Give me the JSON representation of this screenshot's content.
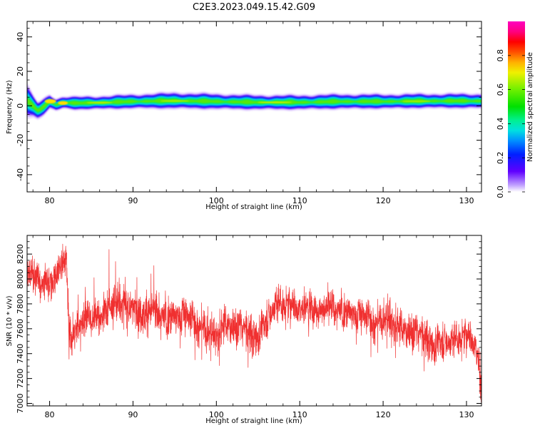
{
  "title": "C2E3.2023.049.15.42.G09",
  "chart_data": [
    {
      "type": "heatmap",
      "xlabel": "Height of straight line (km)",
      "ylabel": "Frequency (Hz)",
      "xlim": [
        77.3,
        131.8
      ],
      "ylim": [
        -50,
        49
      ],
      "xticks": [
        80,
        90,
        100,
        110,
        120,
        130
      ],
      "yticks": [
        -40,
        -20,
        0,
        20,
        40
      ],
      "colorbar": {
        "label": "Normalized spectral amplitude",
        "range": [
          0,
          1
        ],
        "ticks": [
          "0.0",
          "0.2",
          "0.4",
          "0.6",
          "0.8"
        ],
        "colormap": "gist_ncar-like (white-purple-blue-cyan-green-yellow-orange-red-magenta)"
      },
      "ridge": {
        "x": [
          77.3,
          78.0,
          78.6,
          79.2,
          80.0,
          80.8,
          81.6,
          83,
          86,
          90,
          95,
          100,
          105,
          110,
          115,
          120,
          125,
          131.8
        ],
        "center_hz": [
          3,
          0,
          -3,
          -1,
          2.5,
          0.5,
          2,
          1.5,
          1.8,
          2.5,
          3,
          2.5,
          2,
          2,
          2.5,
          2.5,
          2.8,
          2.8
        ],
        "halfwidth_hz": [
          8,
          5,
          4,
          4,
          3.5,
          3,
          3,
          3.2,
          3.3,
          3.5,
          4,
          3.8,
          3.6,
          3.6,
          3.7,
          3.6,
          3.6,
          3.6
        ]
      }
    },
    {
      "type": "line",
      "xlabel": "Height of straight line (km)",
      "ylabel": "SNR (10 * v/v)",
      "xlim": [
        77.3,
        131.8
      ],
      "ylim": [
        6980,
        8350
      ],
      "xticks": [
        80,
        90,
        100,
        110,
        120,
        130
      ],
      "yticks": [
        7000,
        7200,
        7400,
        7600,
        7800,
        8000,
        8200
      ],
      "color": "#f03030",
      "envelope": {
        "x": [
          77.3,
          79,
          80.5,
          82.0,
          82.3,
          82.6,
          83.5,
          86,
          88,
          90,
          93,
          96,
          98,
          99,
          101,
          103,
          104.5,
          105.5,
          106.5,
          107,
          108,
          110,
          113,
          116,
          118,
          120,
          120.9,
          121.3,
          122,
          124,
          126,
          128,
          130,
          131,
          131.5,
          131.8
        ],
        "mid": [
          8050,
          7980,
          8000,
          8200,
          7500,
          7450,
          7650,
          7720,
          7800,
          7780,
          7700,
          7720,
          7650,
          7550,
          7650,
          7600,
          7550,
          7620,
          7720,
          7800,
          7800,
          7780,
          7780,
          7740,
          7700,
          7650,
          7720,
          7700,
          7620,
          7560,
          7500,
          7500,
          7550,
          7500,
          7350,
          7050
        ],
        "amp": [
          130,
          130,
          130,
          120,
          180,
          150,
          120,
          130,
          140,
          140,
          140,
          130,
          120,
          150,
          140,
          130,
          140,
          130,
          130,
          140,
          130,
          120,
          120,
          120,
          120,
          120,
          200,
          140,
          140,
          130,
          130,
          130,
          120,
          120,
          150,
          150
        ]
      }
    }
  ]
}
